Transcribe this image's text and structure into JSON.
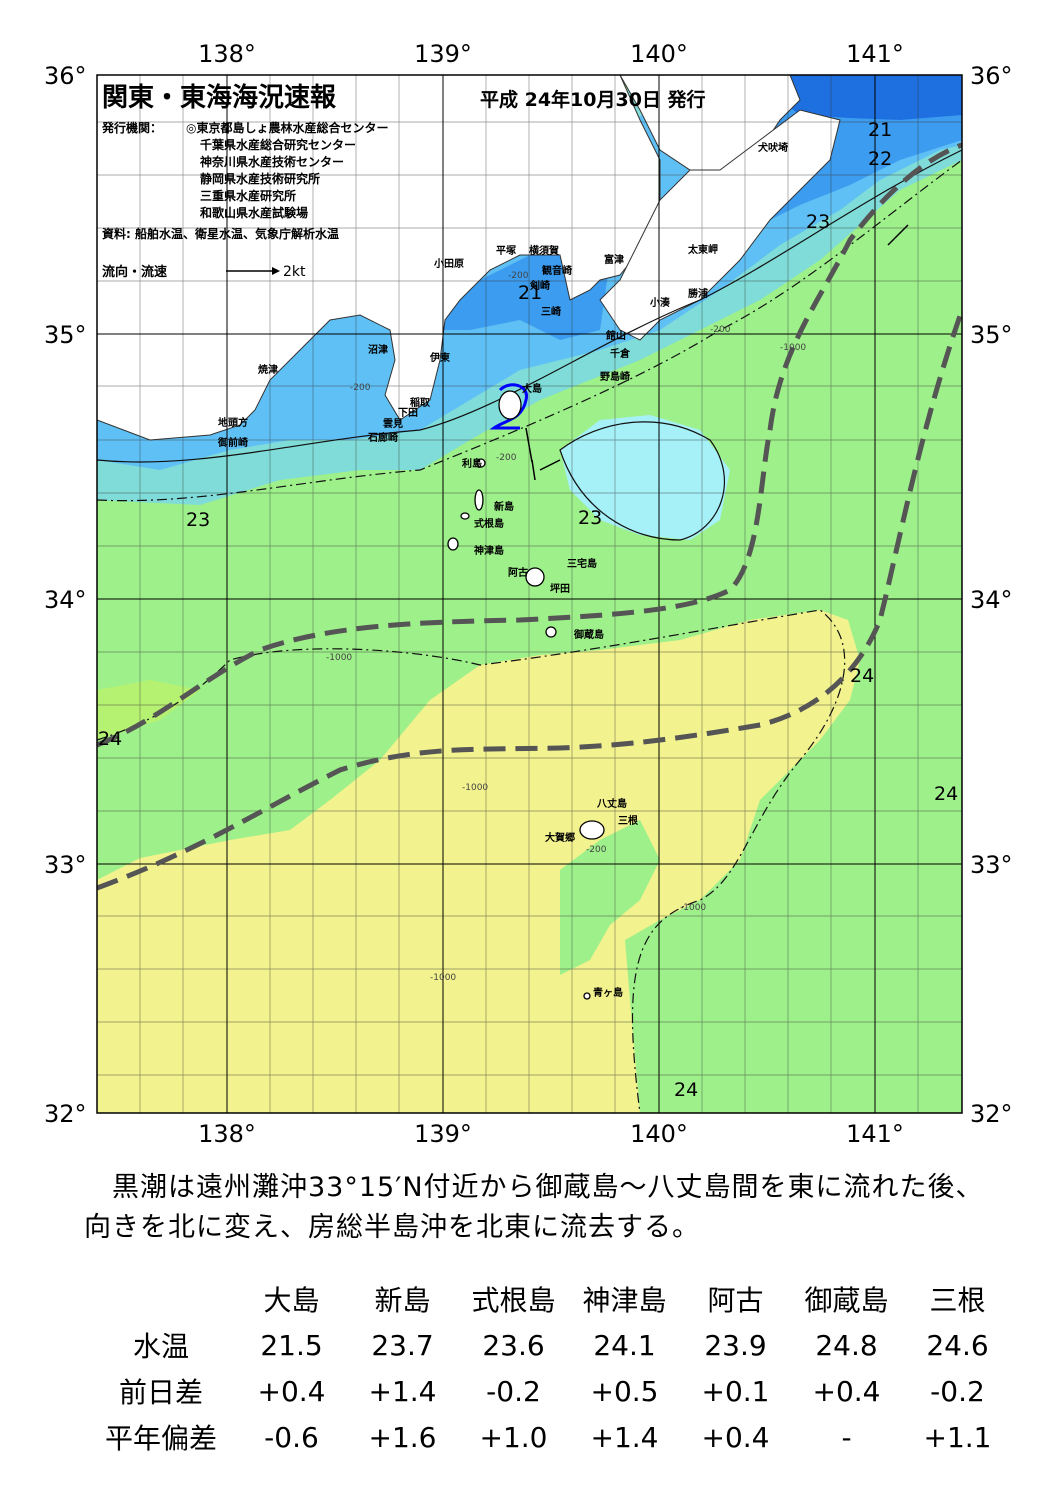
{
  "title": "関東・東海海況速報",
  "issue_date": "平成 24年10月30日 発行",
  "issuers_label": "発行機関：",
  "issuers": [
    "◎東京都島しょ農林水産総合センター",
    "千葉県水産総合研究センター",
    "神奈川県水産技術センター",
    "静岡県水産技術研究所",
    "三重県水産研究所",
    "和歌山県水産試験場"
  ],
  "source": "資料: 船舶水温、衛星水温、気象庁解析水温",
  "legend": {
    "label": "流向・流速",
    "value": "2kt"
  },
  "axes": {
    "lon_ticks": [
      "138°",
      "139°",
      "140°",
      "141°"
    ],
    "lat_ticks": [
      "36°",
      "35°",
      "34°",
      "33°",
      "32°"
    ]
  },
  "colors": {
    "t20": "#1e6fe0",
    "t21": "#3c9cf0",
    "t22": "#5fc0f5",
    "t23": "#a6f0f8",
    "t23b": "#7fdcd8",
    "t24": "#9ef08a",
    "t24b": "#b6f272",
    "t25": "#f2f28e",
    "land": "#ffffff",
    "kuroshio": "#555555",
    "vector": "#0000ff"
  },
  "contour_labels": [
    "21",
    "22",
    "23",
    "21",
    "23",
    "23",
    "24",
    "24",
    "24",
    "24"
  ],
  "depth_labels": [
    "-200",
    "-1000"
  ],
  "place_names": [
    "犬吠埼",
    "太東岬",
    "勝浦",
    "小湊",
    "富津",
    "平塚",
    "横須賀",
    "観音崎",
    "剣崎",
    "三崎",
    "館山",
    "千倉",
    "野島崎",
    "小田原",
    "沼津",
    "伊東",
    "焼津",
    "稲取",
    "下田",
    "雲見",
    "石廊崎",
    "地頭方",
    "御前崎",
    "大島",
    "利島",
    "新島",
    "式根島",
    "神津島",
    "三宅島",
    "阿古",
    "坪田",
    "御蔵島",
    "八丈島",
    "三根",
    "大賀郷",
    "青ヶ島"
  ],
  "caption": "　黒潮は遠州灘沖33°15′N付近から御蔵島～八丈島間を東に流れた後、向きを北に変え、房総半島沖を北東に流去する。",
  "stats": {
    "columns": [
      "大島",
      "新島",
      "式根島",
      "神津島",
      "阿古",
      "御蔵島",
      "三根"
    ],
    "rows": [
      {
        "label": "水温",
        "values": [
          "21.5",
          "23.7",
          "23.6",
          "24.1",
          "23.9",
          "24.8",
          "24.6"
        ]
      },
      {
        "label": "前日差",
        "values": [
          "+0.4",
          "+1.4",
          "-0.2",
          "+0.5",
          "+0.1",
          "+0.4",
          "-0.2"
        ]
      },
      {
        "label": "平年偏差",
        "values": [
          "-0.6",
          "+1.6",
          "+1.0",
          "+1.4",
          "+0.4",
          "-",
          "+1.1"
        ]
      }
    ]
  }
}
